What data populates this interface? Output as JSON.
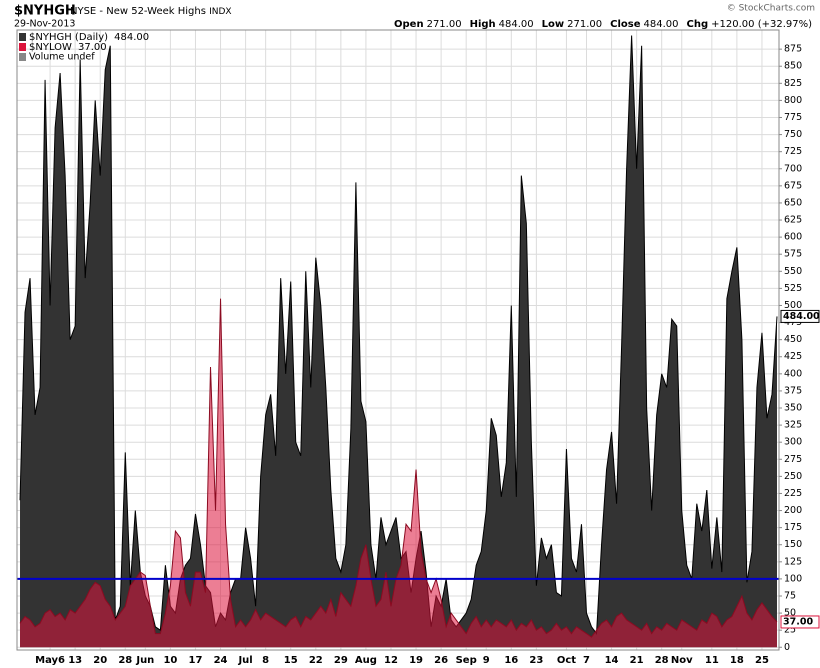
{
  "header": {
    "symbol": "$NYHGH",
    "name": "NYSE - New 52-Week Highs",
    "exchange": "INDX",
    "date": "29-Nov-2013",
    "credit": "© StockCharts.com",
    "quote": [
      {
        "label": "Open",
        "value": "271.00"
      },
      {
        "label": "High",
        "value": "484.00"
      },
      {
        "label": "Low",
        "value": "271.00"
      },
      {
        "label": "Close",
        "value": "484.00"
      },
      {
        "label": "Chg",
        "value": "+120.00 (+32.97%)"
      }
    ]
  },
  "chart_data": {
    "type": "area",
    "categories": [
      null,
      null,
      null,
      null,
      null,
      null,
      "May6",
      null,
      null,
      null,
      null,
      "13",
      null,
      null,
      null,
      null,
      "20",
      null,
      null,
      null,
      null,
      "28",
      null,
      null,
      null,
      "Jun",
      null,
      null,
      null,
      null,
      "10",
      null,
      null,
      null,
      null,
      "17",
      null,
      null,
      null,
      null,
      "24",
      null,
      null,
      null,
      null,
      "Jul",
      null,
      null,
      null,
      "8",
      null,
      null,
      null,
      null,
      "15",
      null,
      null,
      null,
      null,
      "22",
      null,
      null,
      null,
      null,
      "29",
      null,
      null,
      null,
      null,
      "Aug",
      null,
      null,
      null,
      null,
      "12",
      null,
      null,
      null,
      null,
      "19",
      null,
      null,
      null,
      null,
      "26",
      null,
      null,
      null,
      null,
      "Sep",
      null,
      null,
      null,
      "9",
      null,
      null,
      null,
      null,
      "16",
      null,
      null,
      null,
      null,
      "23",
      null,
      null,
      null,
      null,
      null,
      "Oct",
      null,
      null,
      null,
      "7",
      null,
      null,
      null,
      null,
      "14",
      null,
      null,
      null,
      null,
      "21",
      null,
      null,
      null,
      null,
      "28",
      null,
      null,
      null,
      "Nov",
      null,
      null,
      null,
      null,
      null,
      "11",
      null,
      null,
      null,
      null,
      "18",
      null,
      null,
      null,
      null,
      "25",
      null,
      null,
      null
    ],
    "series": [
      {
        "name": "$NYHGH (Daily)",
        "last_value_label": "484.00",
        "color": "#333333",
        "line_color": "#000000",
        "values": [
          215,
          490,
          540,
          340,
          380,
          830,
          500,
          760,
          840,
          690,
          450,
          470,
          860,
          540,
          650,
          800,
          690,
          845,
          880,
          40,
          60,
          285,
          90,
          200,
          110,
          75,
          60,
          30,
          25,
          120,
          60,
          50,
          100,
          120,
          130,
          195,
          150,
          90,
          80,
          30,
          50,
          40,
          80,
          100,
          100,
          175,
          130,
          60,
          250,
          340,
          370,
          280,
          540,
          400,
          535,
          300,
          280,
          550,
          380,
          570,
          500,
          380,
          230,
          130,
          110,
          150,
          320,
          680,
          360,
          330,
          150,
          100,
          190,
          150,
          170,
          190,
          130,
          140,
          80,
          130,
          170,
          110,
          30,
          75,
          60,
          100,
          40,
          30,
          40,
          50,
          70,
          120,
          140,
          200,
          335,
          310,
          220,
          270,
          500,
          220,
          690,
          620,
          300,
          90,
          160,
          130,
          150,
          80,
          75,
          290,
          130,
          110,
          180,
          50,
          30,
          20,
          150,
          260,
          315,
          210,
          440,
          700,
          895,
          700,
          880,
          350,
          200,
          340,
          400,
          380,
          480,
          470,
          200,
          120,
          100,
          210,
          170,
          230,
          115,
          190,
          110,
          510,
          550,
          585,
          450,
          95,
          140,
          380,
          460,
          335,
          370,
          484
        ]
      },
      {
        "name": "$NYLOW",
        "last_value_label": "37.00",
        "color": "#dc143c",
        "line_color": "#8b0a20",
        "values": [
          35,
          45,
          40,
          30,
          35,
          50,
          55,
          45,
          50,
          40,
          55,
          50,
          60,
          70,
          85,
          95,
          90,
          70,
          60,
          40,
          50,
          60,
          90,
          100,
          110,
          105,
          60,
          20,
          20,
          50,
          90,
          170,
          160,
          80,
          60,
          110,
          110,
          80,
          410,
          200,
          510,
          180,
          70,
          30,
          40,
          30,
          40,
          55,
          40,
          50,
          45,
          40,
          35,
          30,
          40,
          45,
          30,
          45,
          40,
          50,
          60,
          50,
          70,
          45,
          80,
          70,
          60,
          90,
          130,
          150,
          100,
          60,
          70,
          110,
          60,
          100,
          120,
          180,
          170,
          260,
          140,
          100,
          80,
          100,
          70,
          30,
          50,
          40,
          30,
          20,
          35,
          45,
          30,
          40,
          30,
          40,
          35,
          30,
          40,
          25,
          35,
          30,
          40,
          25,
          30,
          20,
          25,
          35,
          25,
          30,
          20,
          30,
          25,
          20,
          15,
          25,
          35,
          40,
          30,
          45,
          50,
          40,
          35,
          30,
          25,
          35,
          20,
          30,
          25,
          35,
          30,
          25,
          40,
          35,
          30,
          25,
          40,
          35,
          50,
          45,
          30,
          40,
          45,
          60,
          75,
          50,
          40,
          55,
          65,
          55,
          45,
          37
        ]
      }
    ],
    "volume_note": "Volume undef",
    "hline": {
      "value": 100,
      "color": "#0000cc"
    },
    "ylim": [
      -4,
      903
    ],
    "yticks": [
      0,
      25,
      50,
      75,
      100,
      125,
      150,
      175,
      200,
      225,
      250,
      275,
      300,
      325,
      350,
      375,
      400,
      425,
      450,
      475,
      500,
      525,
      550,
      575,
      600,
      625,
      650,
      675,
      700,
      725,
      750,
      775,
      800,
      825,
      850,
      875
    ],
    "grid": true
  }
}
